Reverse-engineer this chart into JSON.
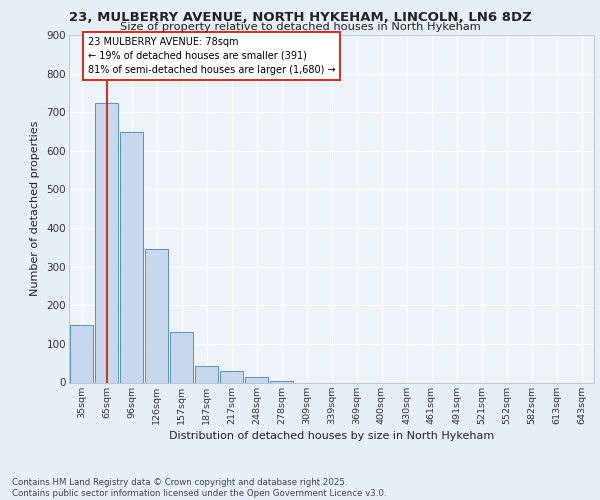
{
  "title1": "23, MULBERRY AVENUE, NORTH HYKEHAM, LINCOLN, LN6 8DZ",
  "title2": "Size of property relative to detached houses in North Hykeham",
  "xlabel": "Distribution of detached houses by size in North Hykeham",
  "ylabel": "Number of detached properties",
  "categories": [
    "35sqm",
    "65sqm",
    "96sqm",
    "126sqm",
    "157sqm",
    "187sqm",
    "217sqm",
    "248sqm",
    "278sqm",
    "309sqm",
    "339sqm",
    "369sqm",
    "400sqm",
    "430sqm",
    "461sqm",
    "491sqm",
    "521sqm",
    "552sqm",
    "582sqm",
    "613sqm",
    "643sqm"
  ],
  "values": [
    150,
    725,
    650,
    345,
    130,
    42,
    30,
    13,
    5,
    0,
    0,
    0,
    0,
    0,
    0,
    0,
    0,
    0,
    0,
    0,
    0
  ],
  "bar_color": "#c8d8ec",
  "bar_edge_color": "#5a8fc0",
  "vline_x": 1,
  "vline_color": "#c0392b",
  "annotation_line1": "23 MULBERRY AVENUE: 78sqm",
  "annotation_line2": "← 19% of detached houses are smaller (391)",
  "annotation_line3": "81% of semi-detached houses are larger (1,680) →",
  "annotation_box_color": "white",
  "annotation_box_edge": "#c0392b",
  "ylim": [
    0,
    900
  ],
  "yticks": [
    0,
    100,
    200,
    300,
    400,
    500,
    600,
    700,
    800,
    900
  ],
  "footer_text": "Contains HM Land Registry data © Crown copyright and database right 2025.\nContains public sector information licensed under the Open Government Licence v3.0.",
  "bg_color": "#e8eff8",
  "plot_bg_color": "#eef3fa"
}
